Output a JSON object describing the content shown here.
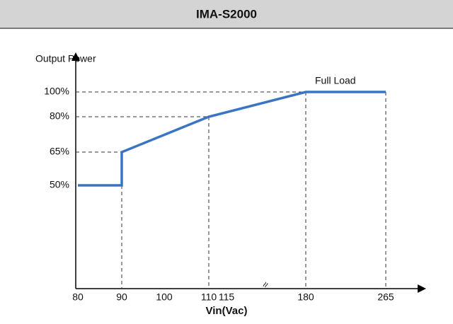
{
  "chart_data": {
    "type": "line",
    "title": "IMA-S2000",
    "y_label": "Output Power",
    "x_label": "Vin(Vac)",
    "annotations": [
      "Full Load",
      "≈"
    ],
    "x": [
      80,
      90,
      90,
      110,
      180,
      265
    ],
    "series": [
      {
        "name": "Output Power",
        "color": "#3a75c4",
        "values": [
          50,
          50,
          65,
          80,
          100,
          100
        ]
      }
    ],
    "xlim": [
      80,
      265
    ],
    "ylim": [
      50,
      100
    ],
    "xticks": [
      80,
      90,
      100,
      110,
      115,
      180,
      265
    ],
    "yticks": [
      {
        "value": 50,
        "label": "50%"
      },
      {
        "value": 65,
        "label": "65%"
      },
      {
        "value": 80,
        "label": "80%"
      },
      {
        "value": 100,
        "label": "100%"
      }
    ],
    "grid": false
  }
}
